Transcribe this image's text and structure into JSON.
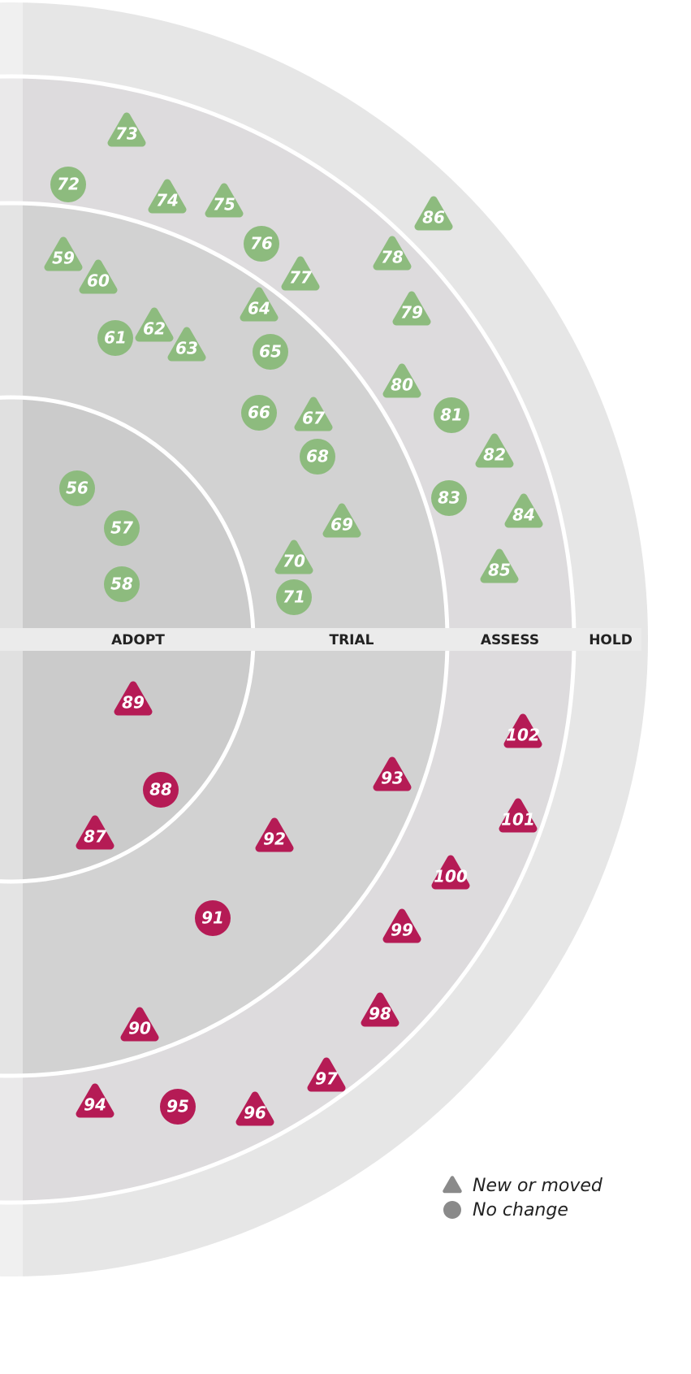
{
  "rings": [
    "ADOPT",
    "TRIAL",
    "ASSESS",
    "HOLD"
  ],
  "quadrants": [
    {
      "color": "#8dbb7e",
      "blips": [
        {
          "label": 73,
          "shape": "triangle"
        },
        {
          "label": 72,
          "shape": "circle"
        },
        {
          "label": 74,
          "shape": "triangle"
        },
        {
          "label": 75,
          "shape": "triangle"
        },
        {
          "label": 86,
          "shape": "triangle"
        },
        {
          "label": 76,
          "shape": "circle"
        },
        {
          "label": 59,
          "shape": "triangle"
        },
        {
          "label": 78,
          "shape": "triangle"
        },
        {
          "label": 60,
          "shape": "triangle"
        },
        {
          "label": 77,
          "shape": "triangle"
        },
        {
          "label": 64,
          "shape": "triangle"
        },
        {
          "label": 79,
          "shape": "triangle"
        },
        {
          "label": 62,
          "shape": "triangle"
        },
        {
          "label": 61,
          "shape": "circle"
        },
        {
          "label": 63,
          "shape": "triangle"
        },
        {
          "label": 65,
          "shape": "circle"
        },
        {
          "label": 80,
          "shape": "triangle"
        },
        {
          "label": 66,
          "shape": "circle"
        },
        {
          "label": 67,
          "shape": "triangle"
        },
        {
          "label": 81,
          "shape": "circle"
        },
        {
          "label": 68,
          "shape": "circle"
        },
        {
          "label": 82,
          "shape": "triangle"
        },
        {
          "label": 56,
          "shape": "circle"
        },
        {
          "label": 83,
          "shape": "circle"
        },
        {
          "label": 84,
          "shape": "triangle"
        },
        {
          "label": 69,
          "shape": "triangle"
        },
        {
          "label": 57,
          "shape": "circle"
        },
        {
          "label": 85,
          "shape": "triangle"
        },
        {
          "label": 70,
          "shape": "triangle"
        },
        {
          "label": 58,
          "shape": "circle"
        },
        {
          "label": 71,
          "shape": "circle"
        }
      ]
    },
    {
      "color": "#b51b55",
      "blips": [
        {
          "label": 89,
          "shape": "triangle"
        },
        {
          "label": 102,
          "shape": "triangle"
        },
        {
          "label": 93,
          "shape": "triangle"
        },
        {
          "label": 88,
          "shape": "circle"
        },
        {
          "label": 101,
          "shape": "triangle"
        },
        {
          "label": 87,
          "shape": "triangle"
        },
        {
          "label": 92,
          "shape": "triangle"
        },
        {
          "label": 100,
          "shape": "triangle"
        },
        {
          "label": 91,
          "shape": "circle"
        },
        {
          "label": 99,
          "shape": "triangle"
        },
        {
          "label": 98,
          "shape": "triangle"
        },
        {
          "label": 90,
          "shape": "triangle"
        },
        {
          "label": 97,
          "shape": "triangle"
        },
        {
          "label": 94,
          "shape": "triangle"
        },
        {
          "label": 95,
          "shape": "circle"
        },
        {
          "label": 96,
          "shape": "triangle"
        }
      ]
    }
  ],
  "legend": [
    {
      "label": "New or moved",
      "shape": "triangle"
    },
    {
      "label": "No change",
      "shape": "circle"
    }
  ]
}
